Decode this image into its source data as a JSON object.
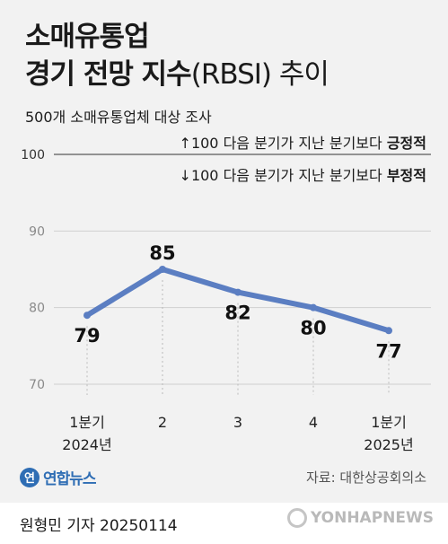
{
  "header": {
    "title_line1": "소매유통업",
    "title_line2_bold": "경기 전망 지수",
    "title_line2_light": "(RBSI) 추이",
    "subtitle": "500개 소매유통업체 대상 조사"
  },
  "reference": {
    "above": "↑100 다음 분기가 지난 분기보다 ",
    "above_bold": "긍정적",
    "below": "↓100 다음 분기가 지난 분기보다 ",
    "below_bold": "부정적"
  },
  "chart_data": {
    "type": "line",
    "categories": [
      "1분기\n2024년",
      "2",
      "3",
      "4",
      "1분기\n2025년"
    ],
    "values": [
      79,
      85,
      82,
      80,
      77
    ],
    "title": "소매유통업 경기 전망 지수(RBSI) 추이",
    "subtitle": "500개 소매유통업체 대상 조사",
    "ylim": [
      70,
      100
    ],
    "yticks": [
      70,
      80,
      90,
      100
    ],
    "reference_line": 100,
    "grid": true,
    "line_color": "#5b7ec2"
  },
  "footer": {
    "logo_mark": "연",
    "logo_text": "연합뉴스",
    "source": "자료: 대한상공회의소",
    "author": "원형민 기자  20250114",
    "watermark": "YONHAPNEWS"
  }
}
